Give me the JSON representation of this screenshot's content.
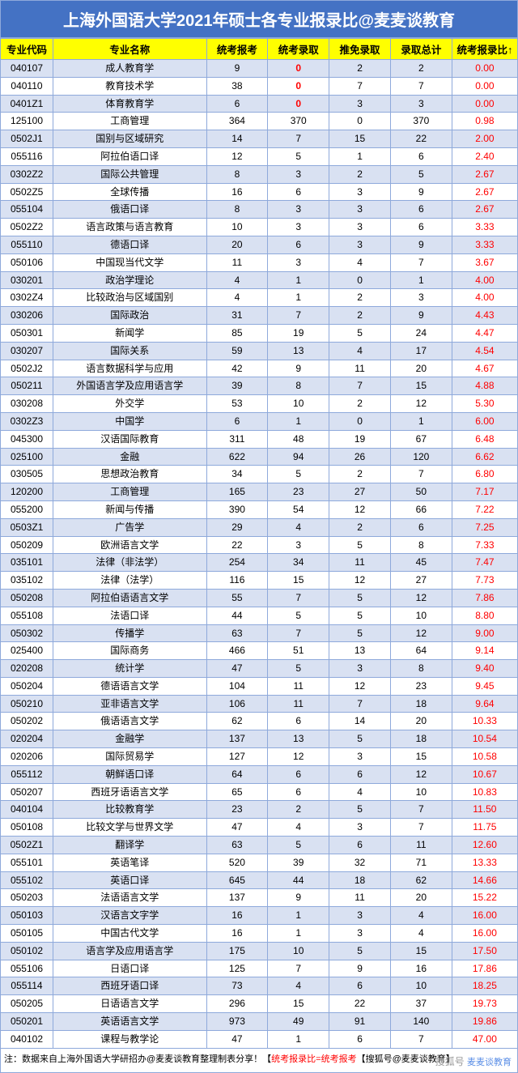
{
  "title": "上海外国语大学2021年硕士各专业报录比@麦麦谈教育",
  "columns": [
    "专业代码",
    "专业名称",
    "统考报考",
    "统考录取",
    "推免录取",
    "录取总计",
    "统考报录比↑"
  ],
  "rows": [
    [
      "040107",
      "成人教育学",
      "9",
      "0",
      "2",
      "2",
      "0.00"
    ],
    [
      "040110",
      "教育技术学",
      "38",
      "0",
      "7",
      "7",
      "0.00"
    ],
    [
      "0401Z1",
      "体育教育学",
      "6",
      "0",
      "3",
      "3",
      "0.00"
    ],
    [
      "125100",
      "工商管理",
      "364",
      "370",
      "0",
      "370",
      "0.98"
    ],
    [
      "0502J1",
      "国别与区域研究",
      "14",
      "7",
      "15",
      "22",
      "2.00"
    ],
    [
      "055116",
      "阿拉伯语口译",
      "12",
      "5",
      "1",
      "6",
      "2.40"
    ],
    [
      "0302Z2",
      "国际公共管理",
      "8",
      "3",
      "2",
      "5",
      "2.67"
    ],
    [
      "0502Z5",
      "全球传播",
      "16",
      "6",
      "3",
      "9",
      "2.67"
    ],
    [
      "055104",
      "俄语口译",
      "8",
      "3",
      "3",
      "6",
      "2.67"
    ],
    [
      "0502Z2",
      "语言政策与语言教育",
      "10",
      "3",
      "3",
      "6",
      "3.33"
    ],
    [
      "055110",
      "德语口译",
      "20",
      "6",
      "3",
      "9",
      "3.33"
    ],
    [
      "050106",
      "中国现当代文学",
      "11",
      "3",
      "4",
      "7",
      "3.67"
    ],
    [
      "030201",
      "政治学理论",
      "4",
      "1",
      "0",
      "1",
      "4.00"
    ],
    [
      "0302Z4",
      "比较政治与区域国别",
      "4",
      "1",
      "2",
      "3",
      "4.00"
    ],
    [
      "030206",
      "国际政治",
      "31",
      "7",
      "2",
      "9",
      "4.43"
    ],
    [
      "050301",
      "新闻学",
      "85",
      "19",
      "5",
      "24",
      "4.47"
    ],
    [
      "030207",
      "国际关系",
      "59",
      "13",
      "4",
      "17",
      "4.54"
    ],
    [
      "0502J2",
      "语言数据科学与应用",
      "42",
      "9",
      "11",
      "20",
      "4.67"
    ],
    [
      "050211",
      "外国语言学及应用语言学",
      "39",
      "8",
      "7",
      "15",
      "4.88"
    ],
    [
      "030208",
      "外交学",
      "53",
      "10",
      "2",
      "12",
      "5.30"
    ],
    [
      "0302Z3",
      "中国学",
      "6",
      "1",
      "0",
      "1",
      "6.00"
    ],
    [
      "045300",
      "汉语国际教育",
      "311",
      "48",
      "19",
      "67",
      "6.48"
    ],
    [
      "025100",
      "金融",
      "622",
      "94",
      "26",
      "120",
      "6.62"
    ],
    [
      "030505",
      "思想政治教育",
      "34",
      "5",
      "2",
      "7",
      "6.80"
    ],
    [
      "120200",
      "工商管理",
      "165",
      "23",
      "27",
      "50",
      "7.17"
    ],
    [
      "055200",
      "新闻与传播",
      "390",
      "54",
      "12",
      "66",
      "7.22"
    ],
    [
      "0503Z1",
      "广告学",
      "29",
      "4",
      "2",
      "6",
      "7.25"
    ],
    [
      "050209",
      "欧洲语言文学",
      "22",
      "3",
      "5",
      "8",
      "7.33"
    ],
    [
      "035101",
      "法律（非法学）",
      "254",
      "34",
      "11",
      "45",
      "7.47"
    ],
    [
      "035102",
      "法律（法学）",
      "116",
      "15",
      "12",
      "27",
      "7.73"
    ],
    [
      "050208",
      "阿拉伯语语言文学",
      "55",
      "7",
      "5",
      "12",
      "7.86"
    ],
    [
      "055108",
      "法语口译",
      "44",
      "5",
      "5",
      "10",
      "8.80"
    ],
    [
      "050302",
      "传播学",
      "63",
      "7",
      "5",
      "12",
      "9.00"
    ],
    [
      "025400",
      "国际商务",
      "466",
      "51",
      "13",
      "64",
      "9.14"
    ],
    [
      "020208",
      "统计学",
      "47",
      "5",
      "3",
      "8",
      "9.40"
    ],
    [
      "050204",
      "德语语言文学",
      "104",
      "11",
      "12",
      "23",
      "9.45"
    ],
    [
      "050210",
      "亚非语言文学",
      "106",
      "11",
      "7",
      "18",
      "9.64"
    ],
    [
      "050202",
      "俄语语言文学",
      "62",
      "6",
      "14",
      "20",
      "10.33"
    ],
    [
      "020204",
      "金融学",
      "137",
      "13",
      "5",
      "18",
      "10.54"
    ],
    [
      "020206",
      "国际贸易学",
      "127",
      "12",
      "3",
      "15",
      "10.58"
    ],
    [
      "055112",
      "朝鲜语口译",
      "64",
      "6",
      "6",
      "12",
      "10.67"
    ],
    [
      "050207",
      "西班牙语语言文学",
      "65",
      "6",
      "4",
      "10",
      "10.83"
    ],
    [
      "040104",
      "比较教育学",
      "23",
      "2",
      "5",
      "7",
      "11.50"
    ],
    [
      "050108",
      "比较文学与世界文学",
      "47",
      "4",
      "3",
      "7",
      "11.75"
    ],
    [
      "0502Z1",
      "翻译学",
      "63",
      "5",
      "6",
      "11",
      "12.60"
    ],
    [
      "055101",
      "英语笔译",
      "520",
      "39",
      "32",
      "71",
      "13.33"
    ],
    [
      "055102",
      "英语口译",
      "645",
      "44",
      "18",
      "62",
      "14.66"
    ],
    [
      "050203",
      "法语语言文学",
      "137",
      "9",
      "11",
      "20",
      "15.22"
    ],
    [
      "050103",
      "汉语言文字学",
      "16",
      "1",
      "3",
      "4",
      "16.00"
    ],
    [
      "050105",
      "中国古代文学",
      "16",
      "1",
      "3",
      "4",
      "16.00"
    ],
    [
      "050102",
      "语言学及应用语言学",
      "175",
      "10",
      "5",
      "15",
      "17.50"
    ],
    [
      "055106",
      "日语口译",
      "125",
      "7",
      "9",
      "16",
      "17.86"
    ],
    [
      "055114",
      "西班牙语口译",
      "73",
      "4",
      "6",
      "10",
      "18.25"
    ],
    [
      "050205",
      "日语语言文学",
      "296",
      "15",
      "22",
      "37",
      "19.73"
    ],
    [
      "050201",
      "英语语言文学",
      "973",
      "49",
      "91",
      "140",
      "19.86"
    ],
    [
      "040102",
      "课程与教学论",
      "47",
      "1",
      "6",
      "7",
      "47.00"
    ]
  ],
  "footer_plain": "注：数据来自上海外国语大学研招办@麦麦谈教育整理制表分享！【",
  "footer_red": "统考报录比=统考报考",
  "footer_suffix": "【搜狐号@麦麦谈教育】",
  "wm1": "搜狐号",
  "wm2": "麦麦谈教育"
}
